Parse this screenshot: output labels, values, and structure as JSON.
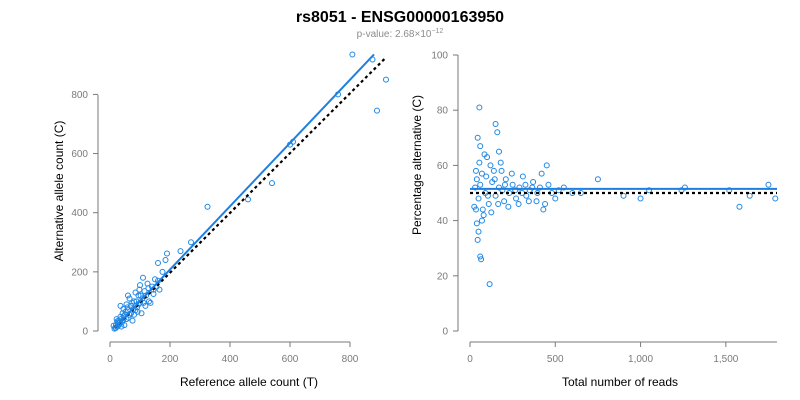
{
  "figure": {
    "title": "rs8051 - ENSG00000163950",
    "subtitle_prefix": "p-value: 2.68×10",
    "subtitle_exp": "−12"
  },
  "colors": {
    "points": "#1f88e5",
    "fit_line": "#1e7fe0",
    "reference_line": "#000000",
    "axis": "#7a7a7a"
  },
  "chart_data": [
    {
      "type": "scatter",
      "xlabel": "Reference allele count (T)",
      "ylabel": "Alternative allele count (C)",
      "xlim": [
        0,
        900
      ],
      "ylim": [
        0,
        940
      ],
      "xticks": [
        0,
        200,
        400,
        600,
        800
      ],
      "xtick_labels": [
        "0",
        "200",
        "400",
        "600",
        "800"
      ],
      "yticks": [
        0,
        200,
        400,
        600,
        800
      ],
      "ytick_labels": [
        "0",
        "200",
        "400",
        "600",
        "800"
      ],
      "fit_line": {
        "x": [
          15,
          880
        ],
        "y": [
          10,
          935
        ]
      },
      "reference_line": {
        "x": [
          15,
          920
        ],
        "y": [
          10,
          925
        ]
      },
      "points": [
        [
          808,
          935
        ],
        [
          875,
          918
        ],
        [
          920,
          850
        ],
        [
          890,
          745
        ],
        [
          760,
          800
        ],
        [
          610,
          640
        ],
        [
          600,
          630
        ],
        [
          540,
          500
        ],
        [
          460,
          445
        ],
        [
          325,
          420
        ],
        [
          270,
          300
        ],
        [
          235,
          270
        ],
        [
          190,
          262
        ],
        [
          185,
          240
        ],
        [
          175,
          200
        ],
        [
          160,
          230
        ],
        [
          150,
          175
        ],
        [
          140,
          150
        ],
        [
          120,
          120
        ],
        [
          110,
          180
        ],
        [
          100,
          95
        ],
        [
          95,
          120
        ],
        [
          90,
          80
        ],
        [
          80,
          100
        ],
        [
          70,
          60
        ],
        [
          65,
          110
        ],
        [
          60,
          70
        ],
        [
          55,
          40
        ],
        [
          50,
          55
        ],
        [
          45,
          75
        ],
        [
          40,
          30
        ],
        [
          35,
          48
        ],
        [
          30,
          25
        ],
        [
          28,
          35
        ],
        [
          25,
          15
        ],
        [
          22,
          40
        ],
        [
          20,
          20
        ],
        [
          18,
          12
        ],
        [
          15,
          8
        ],
        [
          12,
          18
        ],
        [
          130,
          100
        ],
        [
          115,
          135
        ],
        [
          105,
          60
        ],
        [
          85,
          130
        ],
        [
          75,
          35
        ],
        [
          145,
          125
        ],
        [
          125,
          160
        ],
        [
          165,
          140
        ],
        [
          100,
          155
        ],
        [
          60,
          120
        ],
        [
          35,
          85
        ],
        [
          55,
          90
        ],
        [
          48,
          20
        ],
        [
          42,
          60
        ],
        [
          38,
          15
        ],
        [
          70,
          85
        ],
        [
          80,
          55
        ],
        [
          92,
          65
        ],
        [
          108,
          110
        ],
        [
          135,
          95
        ],
        [
          155,
          150
        ],
        [
          118,
          85
        ],
        [
          98,
          140
        ],
        [
          88,
          100
        ],
        [
          78,
          75
        ],
        [
          62,
          45
        ],
        [
          52,
          65
        ],
        [
          44,
          38
        ],
        [
          33,
          30
        ],
        [
          26,
          28
        ],
        [
          160,
          170
        ],
        [
          145,
          140
        ],
        [
          128,
          145
        ],
        [
          112,
          95
        ],
        [
          102,
          120
        ],
        [
          95,
          90
        ],
        [
          85,
          70
        ],
        [
          74,
          95
        ],
        [
          66,
          55
        ],
        [
          58,
          80
        ],
        [
          46,
          50
        ],
        [
          36,
          40
        ],
        [
          29,
          20
        ],
        [
          24,
          32
        ],
        [
          19,
          10
        ]
      ]
    },
    {
      "type": "scatter",
      "xlabel": "Total number of reads",
      "ylabel": "Percentage alternative (C)",
      "xlim": [
        0,
        1800
      ],
      "ylim": [
        0,
        100
      ],
      "xticks": [
        0,
        500,
        1000,
        1500
      ],
      "xtick_labels": [
        "0",
        "500",
        "1,000",
        "1,500"
      ],
      "yticks": [
        0,
        20,
        40,
        60,
        80,
        100
      ],
      "ytick_labels": [
        "0",
        "20",
        "40",
        "60",
        "80",
        "100"
      ],
      "fit_line": {
        "x": [
          0,
          1800
        ],
        "y": [
          51.5,
          51.5
        ]
      },
      "reference_line": {
        "x": [
          0,
          1800
        ],
        "y": [
          50,
          50
        ]
      },
      "points": [
        [
          55,
          81
        ],
        [
          115,
          17
        ],
        [
          60,
          27
        ],
        [
          65,
          26
        ],
        [
          45,
          33
        ],
        [
          40,
          39
        ],
        [
          50,
          36
        ],
        [
          70,
          40
        ],
        [
          80,
          42
        ],
        [
          35,
          44
        ],
        [
          45,
          70
        ],
        [
          60,
          67
        ],
        [
          85,
          64
        ],
        [
          100,
          63
        ],
        [
          150,
          75
        ],
        [
          160,
          72
        ],
        [
          170,
          65
        ],
        [
          120,
          60
        ],
        [
          140,
          58
        ],
        [
          180,
          61
        ],
        [
          30,
          52
        ],
        [
          40,
          55
        ],
        [
          50,
          48
        ],
        [
          60,
          53
        ],
        [
          70,
          57
        ],
        [
          90,
          50
        ],
        [
          110,
          46
        ],
        [
          130,
          54
        ],
        [
          150,
          49
        ],
        [
          170,
          52
        ],
        [
          190,
          51
        ],
        [
          200,
          47
        ],
        [
          210,
          55
        ],
        [
          230,
          50
        ],
        [
          250,
          53
        ],
        [
          270,
          48
        ],
        [
          290,
          52
        ],
        [
          310,
          56
        ],
        [
          330,
          49
        ],
        [
          350,
          51
        ],
        [
          370,
          54
        ],
        [
          390,
          47
        ],
        [
          410,
          52
        ],
        [
          430,
          44
        ],
        [
          450,
          60
        ],
        [
          480,
          50
        ],
        [
          520,
          51
        ],
        [
          550,
          52
        ],
        [
          600,
          50
        ],
        [
          750,
          55
        ],
        [
          900,
          49
        ],
        [
          1000,
          48
        ],
        [
          1050,
          51
        ],
        [
          1240,
          51
        ],
        [
          1260,
          52
        ],
        [
          1520,
          51
        ],
        [
          1580,
          45
        ],
        [
          1640,
          49
        ],
        [
          1750,
          53
        ],
        [
          1790,
          48
        ],
        [
          25,
          45
        ],
        [
          35,
          58
        ],
        [
          55,
          61
        ],
        [
          75,
          44
        ],
        [
          95,
          56
        ],
        [
          105,
          49
        ],
        [
          125,
          43
        ],
        [
          145,
          55
        ],
        [
          165,
          46
        ],
        [
          185,
          58
        ],
        [
          205,
          53
        ],
        [
          225,
          45
        ],
        [
          245,
          57
        ],
        [
          265,
          51
        ],
        [
          285,
          46
        ],
        [
          305,
          50
        ],
        [
          325,
          53
        ],
        [
          345,
          47
        ],
        [
          365,
          52
        ],
        [
          395,
          50
        ],
        [
          420,
          57
        ],
        [
          440,
          46
        ],
        [
          460,
          53
        ],
        [
          500,
          48
        ],
        [
          650,
          50
        ]
      ]
    }
  ]
}
